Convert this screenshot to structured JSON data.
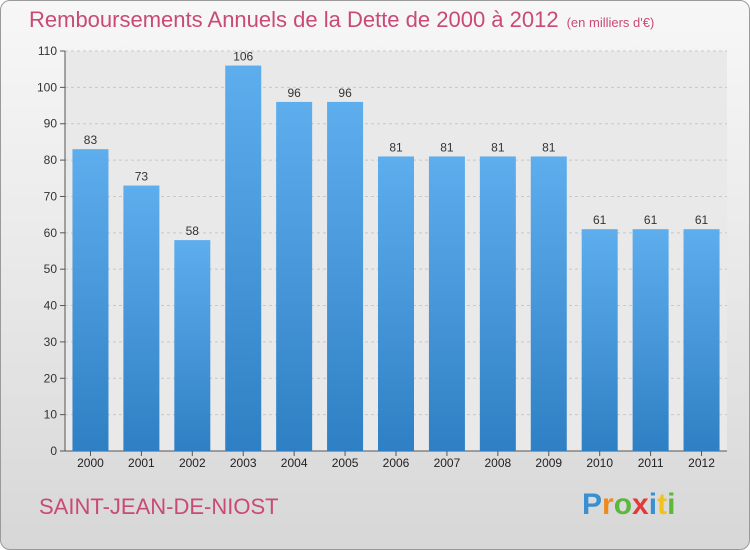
{
  "chart_data": {
    "type": "bar",
    "title": "Remboursements Annuels de la Dette de 2000 à 2012",
    "units_note": "(en milliers d'€)",
    "categories": [
      "2000",
      "2001",
      "2002",
      "2003",
      "2004",
      "2005",
      "2006",
      "2007",
      "2008",
      "2009",
      "2010",
      "2011",
      "2012"
    ],
    "values": [
      83,
      73,
      58,
      106,
      96,
      96,
      81,
      81,
      81,
      81,
      61,
      61,
      61
    ],
    "ylim": [
      0,
      110
    ],
    "yticks": [
      0,
      10,
      20,
      30,
      40,
      50,
      60,
      70,
      80,
      90,
      100,
      110
    ],
    "grid": true,
    "bar_color": "#4a9be0",
    "xlabel": "",
    "ylabel": ""
  },
  "place_name": "SAINT-JEAN-DE-NIOST",
  "logo": {
    "text": "Proxiti",
    "letters": [
      "P",
      "r",
      "o",
      "x",
      "i",
      "t",
      "i"
    ],
    "colors": [
      "#3a8fd0",
      "#f08a1c",
      "#5cb83a",
      "#e23a3a",
      "#3a8fd0",
      "#f0c21c",
      "#5cb83a"
    ]
  },
  "colors": {
    "title": "#c94a77",
    "bar": "#4a9be0"
  }
}
